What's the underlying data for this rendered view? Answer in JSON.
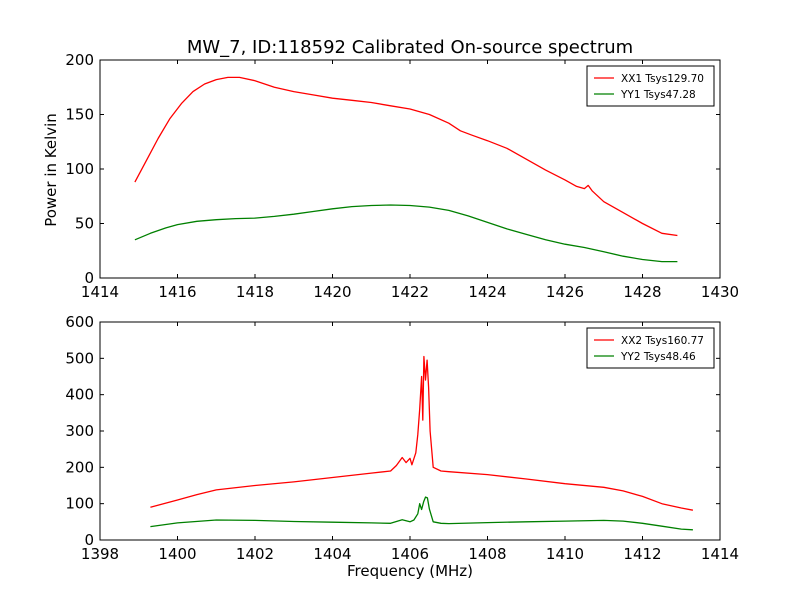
{
  "title": "MW_7, ID:118592 Calibrated On-source spectrum",
  "xlabel": "Frequency (MHz)",
  "ylabel": "Power in Kelvin",
  "chart_data": [
    {
      "type": "line",
      "title": "MW_7, ID:118592 Calibrated On-source spectrum",
      "xlabel": "",
      "ylabel": "Power in Kelvin",
      "xlim": [
        1414,
        1430
      ],
      "ylim": [
        0,
        200
      ],
      "xticks": [
        1414,
        1416,
        1418,
        1420,
        1422,
        1424,
        1426,
        1428,
        1430
      ],
      "yticks": [
        0,
        50,
        100,
        150,
        200
      ],
      "legend_position": "top-right",
      "grid": false,
      "series": [
        {
          "name": "XX1 Tsys129.70",
          "color": "#ff0000",
          "x": [
            1414.9,
            1415.2,
            1415.5,
            1415.8,
            1416.1,
            1416.4,
            1416.7,
            1417.0,
            1417.3,
            1417.6,
            1418.0,
            1418.5,
            1419.0,
            1419.5,
            1420.0,
            1420.5,
            1421.0,
            1421.5,
            1422.0,
            1422.5,
            1423.0,
            1423.3,
            1423.6,
            1424.0,
            1424.5,
            1425.0,
            1425.5,
            1426.0,
            1426.3,
            1426.5,
            1426.6,
            1426.7,
            1427.0,
            1427.5,
            1428.0,
            1428.5,
            1428.9
          ],
          "y": [
            88,
            108,
            128,
            146,
            160,
            171,
            178,
            182,
            184,
            184,
            181,
            175,
            171,
            168,
            165,
            163,
            161,
            158,
            155,
            150,
            142,
            135,
            131,
            126,
            119,
            109,
            99,
            90,
            84,
            82,
            85,
            80,
            70,
            60,
            50,
            41,
            39
          ]
        },
        {
          "name": "YY1 Tsys47.28",
          "color": "#008000",
          "x": [
            1414.9,
            1415.3,
            1415.7,
            1416.0,
            1416.5,
            1417.0,
            1417.5,
            1418.0,
            1418.5,
            1419.0,
            1419.5,
            1420.0,
            1420.5,
            1421.0,
            1421.5,
            1422.0,
            1422.5,
            1423.0,
            1423.5,
            1424.0,
            1424.5,
            1425.0,
            1425.5,
            1426.0,
            1426.5,
            1427.0,
            1427.5,
            1428.0,
            1428.5,
            1428.9
          ],
          "y": [
            35,
            41,
            46,
            49,
            52,
            53.5,
            54.5,
            55,
            56.5,
            58.5,
            61,
            63.5,
            65.5,
            66.5,
            67,
            66.5,
            65,
            62,
            57,
            51,
            45,
            40,
            35,
            31,
            28,
            24,
            20,
            17,
            15,
            15
          ]
        }
      ]
    },
    {
      "type": "line",
      "title": "",
      "xlabel": "Frequency (MHz)",
      "ylabel": "",
      "xlim": [
        1398,
        1414
      ],
      "ylim": [
        0,
        600
      ],
      "xticks": [
        1398,
        1400,
        1402,
        1404,
        1406,
        1408,
        1410,
        1412,
        1414
      ],
      "yticks": [
        0,
        100,
        200,
        300,
        400,
        500,
        600
      ],
      "legend_position": "top-right",
      "grid": false,
      "series": [
        {
          "name": "XX2 Tsys160.77",
          "color": "#ff0000",
          "x": [
            1399.3,
            1400.0,
            1400.5,
            1401.0,
            1402.0,
            1403.0,
            1404.0,
            1405.0,
            1405.5,
            1405.65,
            1405.8,
            1405.9,
            1406.0,
            1406.05,
            1406.15,
            1406.2,
            1406.25,
            1406.3,
            1406.33,
            1406.36,
            1406.4,
            1406.44,
            1406.48,
            1406.52,
            1406.6,
            1406.8,
            1407.0,
            1408.0,
            1409.0,
            1410.0,
            1411.0,
            1411.5,
            1412.0,
            1412.5,
            1413.0,
            1413.3
          ],
          "y": [
            90,
            110,
            125,
            138,
            150,
            160,
            172,
            184,
            190,
            205,
            227,
            213,
            225,
            207,
            240,
            290,
            360,
            450,
            330,
            505,
            440,
            495,
            420,
            300,
            200,
            190,
            188,
            180,
            168,
            155,
            145,
            135,
            120,
            100,
            88,
            82
          ]
        },
        {
          "name": "YY2 Tsys48.46",
          "color": "#008000",
          "x": [
            1399.3,
            1400.0,
            1401.0,
            1402.0,
            1403.0,
            1404.0,
            1405.0,
            1405.5,
            1405.8,
            1406.0,
            1406.1,
            1406.2,
            1406.25,
            1406.3,
            1406.35,
            1406.4,
            1406.45,
            1406.5,
            1406.6,
            1406.8,
            1407.0,
            1408.0,
            1409.0,
            1410.0,
            1411.0,
            1411.5,
            1412.0,
            1412.5,
            1413.0,
            1413.3
          ],
          "y": [
            37,
            47,
            55,
            54,
            51,
            49,
            47,
            46,
            56,
            50,
            55,
            72,
            100,
            84,
            105,
            118,
            116,
            85,
            50,
            46,
            45,
            48,
            50,
            52,
            54,
            52,
            46,
            38,
            30,
            28
          ]
        }
      ]
    }
  ]
}
